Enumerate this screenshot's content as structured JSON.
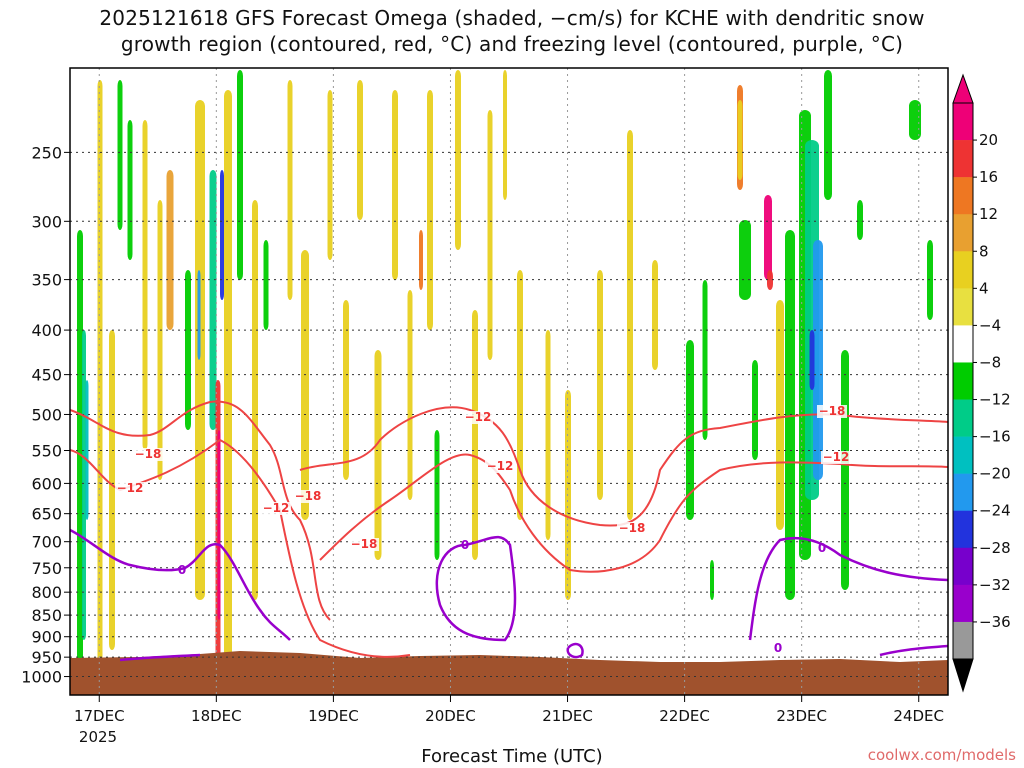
{
  "title_line1": "2025121618 GFS Forecast Omega (shaded, −cm/s) for KCHE with dendritic snow",
  "title_line2": "growth region (contoured, red, °C) and freezing level (contoured, purple, °C)",
  "x_axis_title": "Forecast Time (UTC)",
  "credit": "coolwx.com/models",
  "year_label": "2025",
  "colors": {
    "ground": "#a0522d",
    "dgz_contour": "#ee4444",
    "freezing_contour": "#9900cc"
  },
  "chart_data": {
    "type": "heatmap",
    "xlabel": "Forecast Time (UTC)",
    "ylabel": "",
    "y_scale": "log-pressure",
    "y_ticks": [
      250,
      300,
      350,
      400,
      450,
      500,
      550,
      600,
      650,
      700,
      750,
      800,
      850,
      900,
      950,
      1000
    ],
    "x_ticks": [
      "17DEC",
      "18DEC",
      "19DEC",
      "20DEC",
      "21DEC",
      "22DEC",
      "23DEC",
      "24DEC"
    ],
    "x_tick_hours": [
      6,
      30,
      54,
      78,
      102,
      126,
      150,
      174
    ],
    "x_range_hours": [
      0,
      180
    ],
    "y_range_hPa": [
      200,
      1050
    ],
    "grid": true,
    "colorbar": {
      "labels": [
        "20",
        "16",
        "12",
        "8",
        "4",
        "−4",
        "−8",
        "−12",
        "−16",
        "−20",
        "−24",
        "−28",
        "−32",
        "−36"
      ],
      "colors": [
        "#ee0077",
        "#ee3333",
        "#ee7722",
        "#e8a030",
        "#e8d020",
        "#e8e040",
        "#ffffff",
        "#00cc00",
        "#00cc88",
        "#00c0c0",
        "#2299ee",
        "#2233dd",
        "#7700cc",
        "#9900cc",
        "#999999"
      ]
    },
    "contour_labels": {
      "dgz": [
        "−18",
        "−12",
        "−18",
        "−12",
        "−18",
        "−12",
        "−12",
        "−18",
        "−18",
        "−12"
      ],
      "freezing": [
        "0",
        "0",
        "0",
        "0"
      ]
    }
  }
}
